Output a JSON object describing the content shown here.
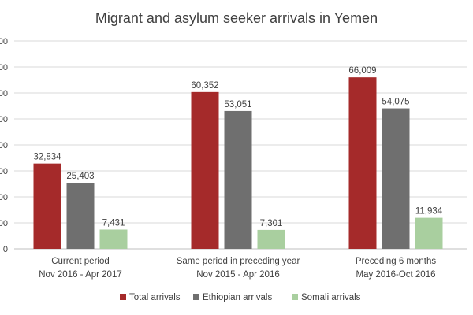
{
  "chart_data": {
    "type": "bar",
    "title": "Migrant and asylum seeker arrivals in Yemen",
    "categories": [
      [
        "Current period",
        "Nov 2016 - Apr 2017"
      ],
      [
        "Same period in preceding year",
        "Nov 2015 - Apr 2016"
      ],
      [
        "Preceding 6 months",
        "May 2016-Oct 2016"
      ]
    ],
    "series": [
      {
        "name": "Total arrivals",
        "color": "#a52a2a",
        "values": [
          32834,
          60352,
          66009
        ]
      },
      {
        "name": "Ethiopian arrivals",
        "color": "#6f6f6f",
        "values": [
          25403,
          53051,
          54075
        ]
      },
      {
        "name": "Somali arrivals",
        "color": "#a9cf9f",
        "values": [
          7431,
          7301,
          11934
        ]
      }
    ],
    "data_labels": [
      [
        "32,834",
        "60,352",
        "66,009"
      ],
      [
        "25,403",
        "53,051",
        "54,075"
      ],
      [
        "7,431",
        "7,301",
        "11,934"
      ]
    ],
    "y_tick_labels": [
      "0",
      "00",
      "00",
      "00",
      "00",
      "00",
      "00",
      "00",
      "00"
    ],
    "y_tick_values": [
      0,
      10000,
      20000,
      30000,
      40000,
      50000,
      60000,
      70000,
      80000
    ],
    "xlabel": "",
    "ylabel": "",
    "ylim": [
      0,
      80000
    ],
    "grid": true,
    "legend_position": "bottom"
  }
}
